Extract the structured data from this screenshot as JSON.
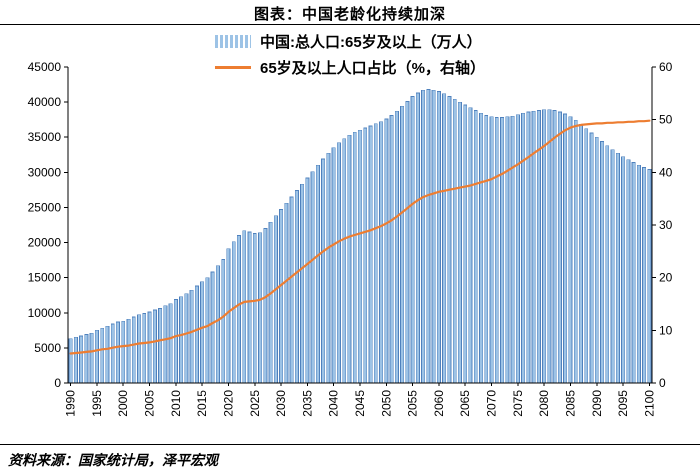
{
  "title": "图表：中国老龄化持续加深",
  "source": "资料来源：国家统计局，泽平宏观",
  "legend": {
    "bars": "中国:总人口:65岁及以上（万人）",
    "line": "65岁及以上人口占比（%，右轴）"
  },
  "colors": {
    "bar_fill": "#9dc3e6",
    "bar_stroke": "#4f81bd",
    "line": "#ed7d31",
    "axis": "#000000"
  },
  "chart_data": {
    "type": "bar",
    "title": "图表：中国老龄化持续加深",
    "xlabel": "",
    "ylabel_left": "中国:总人口:65岁及以上（万人）",
    "ylabel_right": "65岁及以上人口占比（%，右轴）",
    "left_axis": {
      "min": 0,
      "max": 45000,
      "step": 5000
    },
    "right_axis": {
      "min": 0,
      "max": 60,
      "step": 10
    },
    "x_tick_step": 5,
    "grid": false,
    "legend_position": "top-center",
    "x": [
      1990,
      1991,
      1992,
      1993,
      1994,
      1995,
      1996,
      1997,
      1998,
      1999,
      2000,
      2001,
      2002,
      2003,
      2004,
      2005,
      2006,
      2007,
      2008,
      2009,
      2010,
      2011,
      2012,
      2013,
      2014,
      2015,
      2016,
      2017,
      2018,
      2019,
      2020,
      2021,
      2022,
      2023,
      2024,
      2025,
      2026,
      2027,
      2028,
      2029,
      2030,
      2031,
      2032,
      2033,
      2034,
      2035,
      2036,
      2037,
      2038,
      2039,
      2040,
      2041,
      2042,
      2043,
      2044,
      2045,
      2046,
      2047,
      2048,
      2049,
      2050,
      2051,
      2052,
      2053,
      2054,
      2055,
      2056,
      2057,
      2058,
      2059,
      2060,
      2061,
      2062,
      2063,
      2064,
      2065,
      2066,
      2067,
      2068,
      2069,
      2070,
      2071,
      2072,
      2073,
      2074,
      2075,
      2076,
      2077,
      2078,
      2079,
      2080,
      2081,
      2082,
      2083,
      2084,
      2085,
      2086,
      2087,
      2088,
      2089,
      2090,
      2091,
      2092,
      2093,
      2094,
      2095,
      2096,
      2097,
      2098,
      2099,
      2100
    ],
    "series": [
      {
        "name": "中国:总人口:65岁及以上（万人）",
        "type": "bar",
        "axis": "left",
        "values": [
          6300,
          6500,
          6700,
          6900,
          7100,
          7500,
          7800,
          8100,
          8400,
          8700,
          8800,
          9100,
          9400,
          9700,
          9900,
          10100,
          10400,
          10600,
          11000,
          11300,
          11900,
          12300,
          12700,
          13200,
          13800,
          14400,
          15000,
          15800,
          16700,
          17600,
          19100,
          20100,
          21000,
          21700,
          21500,
          21300,
          21400,
          22000,
          22900,
          23800,
          24700,
          25600,
          26500,
          27400,
          28300,
          29200,
          30100,
          31000,
          31900,
          32700,
          33500,
          34200,
          34800,
          35300,
          35700,
          36000,
          36300,
          36600,
          36900,
          37200,
          37600,
          38100,
          38700,
          39400,
          40100,
          40800,
          41300,
          41700,
          41800,
          41700,
          41500,
          41200,
          40800,
          40400,
          40000,
          39600,
          39200,
          38800,
          38400,
          38100,
          37900,
          37800,
          37800,
          37900,
          38000,
          38200,
          38400,
          38600,
          38700,
          38800,
          38900,
          38900,
          38800,
          38600,
          38300,
          37900,
          37400,
          36800,
          36200,
          35600,
          35000,
          34400,
          33800,
          33200,
          32700,
          32200,
          31800,
          31400,
          31000,
          30700,
          30400
        ]
      },
      {
        "name": "65岁及以上人口占比（%，右轴）",
        "type": "line",
        "axis": "right",
        "values": [
          5.6,
          5.7,
          5.8,
          5.9,
          6.0,
          6.2,
          6.4,
          6.5,
          6.7,
          6.9,
          7.0,
          7.1,
          7.3,
          7.5,
          7.6,
          7.7,
          7.9,
          8.1,
          8.3,
          8.5,
          8.9,
          9.1,
          9.4,
          9.7,
          10.1,
          10.5,
          10.8,
          11.4,
          11.9,
          12.6,
          13.5,
          14.2,
          14.9,
          15.4,
          15.5,
          15.6,
          15.8,
          16.3,
          17.0,
          17.8,
          18.6,
          19.4,
          20.2,
          21.0,
          21.8,
          22.6,
          23.4,
          24.2,
          25.0,
          25.7,
          26.3,
          26.9,
          27.4,
          27.8,
          28.1,
          28.4,
          28.7,
          29.0,
          29.4,
          29.8,
          30.3,
          30.9,
          31.6,
          32.4,
          33.2,
          34.0,
          34.7,
          35.3,
          35.7,
          36.0,
          36.3,
          36.5,
          36.7,
          36.9,
          37.1,
          37.3,
          37.5,
          37.8,
          38.1,
          38.4,
          38.7,
          39.2,
          39.7,
          40.3,
          40.9,
          41.5,
          42.2,
          42.9,
          43.6,
          44.3,
          45.0,
          45.8,
          46.6,
          47.3,
          48.0,
          48.5,
          48.8,
          49.0,
          49.1,
          49.2,
          49.3,
          49.3,
          49.4,
          49.4,
          49.5,
          49.5,
          49.6,
          49.6,
          49.7,
          49.7,
          49.8
        ]
      }
    ]
  }
}
